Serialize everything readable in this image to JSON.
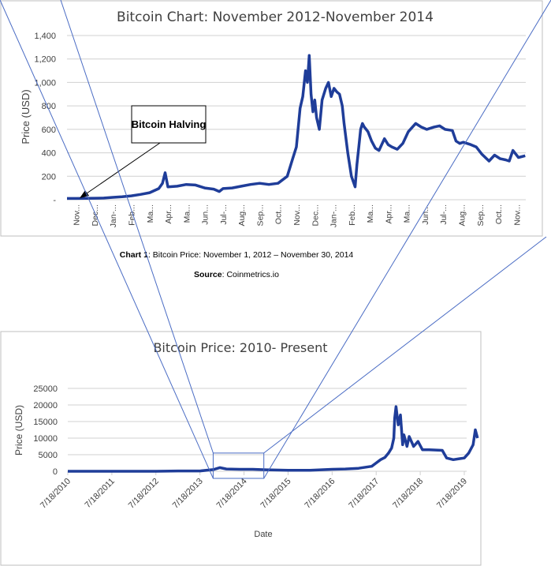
{
  "chart_data": [
    {
      "type": "line",
      "title": "Bitcoin Chart: November 2012-November 2014",
      "xlabel": "",
      "ylabel": "Price (USD)",
      "ylim": [
        0,
        1400
      ],
      "yticks": [
        0,
        200,
        400,
        600,
        800,
        1000,
        1200,
        1400
      ],
      "ytick_labels": [
        "-",
        "200",
        "400",
        "600",
        "800",
        "1,000",
        "1,200",
        "1,400"
      ],
      "xtick_labels": [
        "Nov...",
        "Dec...",
        "Jan-...",
        "Feb...",
        "Ma...",
        "Apr...",
        "Ma...",
        "Jun...",
        "Jul-...",
        "Aug...",
        "Sep...",
        "Oct...",
        "Nov...",
        "Dec...",
        "Jan-...",
        "Feb...",
        "Ma...",
        "Apr...",
        "Ma...",
        "Jun...",
        "Jul-...",
        "Aug...",
        "Sep...",
        "Oct...",
        "Nov..."
      ],
      "grid": true,
      "color": "#1f3d99",
      "x_months": [
        0,
        0.5,
        1,
        1.5,
        2,
        2.5,
        3,
        3.5,
        4,
        4.5,
        5,
        5.2,
        5.35,
        5.5,
        6,
        6.5,
        7,
        7.5,
        8,
        8.3,
        8.5,
        9,
        9.5,
        10,
        10.5,
        11,
        11.5,
        12,
        12.3,
        12.5,
        12.7,
        12.85,
        13,
        13.1,
        13.2,
        13.3,
        13.4,
        13.5,
        13.6,
        13.75,
        13.9,
        14.1,
        14.25,
        14.4,
        14.55,
        14.7,
        14.85,
        15,
        15.1,
        15.3,
        15.5,
        15.7,
        15.8,
        15.9,
        16.0,
        16.1,
        16.2,
        16.3,
        16.4,
        16.6,
        16.8,
        17,
        17.3,
        17.5,
        17.7,
        18,
        18.3,
        18.6,
        19,
        19.3,
        19.6,
        20,
        20.3,
        20.6,
        21,
        21.2,
        21.4,
        21.6,
        22,
        22.3,
        22.6,
        23,
        23.3,
        23.6,
        23.9,
        24.1,
        24.3,
        24.6,
        24.97
      ],
      "values": [
        11,
        11,
        12,
        13,
        14,
        20,
        25,
        33,
        45,
        60,
        95,
        140,
        230,
        110,
        115,
        130,
        125,
        100,
        90,
        70,
        95,
        100,
        115,
        130,
        140,
        130,
        140,
        200,
        350,
        450,
        780,
        880,
        1100,
        1000,
        1230,
        900,
        750,
        850,
        700,
        600,
        850,
        950,
        1000,
        880,
        950,
        920,
        900,
        800,
        650,
        400,
        200,
        110,
        300,
        450,
        600,
        650,
        620,
        600,
        580,
        500,
        440,
        420,
        520,
        470,
        450,
        430,
        480,
        580,
        650,
        620,
        600,
        620,
        630,
        600,
        590,
        500,
        480,
        490,
        470,
        450,
        390,
        330,
        380,
        350,
        340,
        330,
        420,
        360,
        375
      ]
    },
    {
      "type": "line",
      "title": "Bitcoin Price: 2010- Present",
      "xlabel": "Date",
      "ylabel": "Price (USD)",
      "ylim": [
        0,
        25000
      ],
      "yticks": [
        0,
        5000,
        10000,
        15000,
        20000,
        25000
      ],
      "ytick_labels": [
        "0",
        "5000",
        "10000",
        "15000",
        "20000",
        "25000"
      ],
      "xtick_labels": [
        "7/18/2010",
        "7/18/2011",
        "7/18/2012",
        "7/18/2013",
        "7/18/2014",
        "7/18/2015",
        "7/18/2016",
        "7/18/2017",
        "7/18/2018",
        "7/18/2019"
      ],
      "grid": true,
      "color": "#1f3d99",
      "x_years": [
        0,
        1,
        2,
        2.5,
        3,
        3.3,
        3.45,
        3.6,
        3.9,
        4.2,
        4.5,
        5,
        5.5,
        6,
        6.3,
        6.6,
        6.9,
        7.0,
        7.1,
        7.2,
        7.28,
        7.35,
        7.4,
        7.42,
        7.45,
        7.5,
        7.55,
        7.6,
        7.63,
        7.7,
        7.75,
        7.85,
        7.95,
        8.05,
        8.2,
        8.35,
        8.5,
        8.6,
        8.75,
        8.9,
        9.0,
        9.1,
        9.2,
        9.25,
        9.3
      ],
      "values": [
        0,
        10,
        8,
        100,
        90,
        500,
        1100,
        700,
        600,
        600,
        450,
        280,
        300,
        600,
        700,
        900,
        1500,
        2500,
        3500,
        4200,
        5500,
        7000,
        10000,
        16000,
        19500,
        14000,
        17000,
        8000,
        11000,
        7500,
        10500,
        7500,
        9000,
        6500,
        6500,
        6400,
        6300,
        4000,
        3500,
        3800,
        4000,
        5500,
        8000,
        12500,
        10000
      ]
    }
  ],
  "annotation": {
    "label": "Bitcoin Halving"
  },
  "caption": {
    "chart_label": "Chart 1",
    "chart_text": ": Bitcoin Price: November 1, 2012 – November 30, 2014",
    "source_label": "Source",
    "source_text": ": Coinmetrics.io"
  },
  "zoom_box": {
    "from_year": 3.3,
    "to_year": 4.45,
    "to_value": 5500
  }
}
